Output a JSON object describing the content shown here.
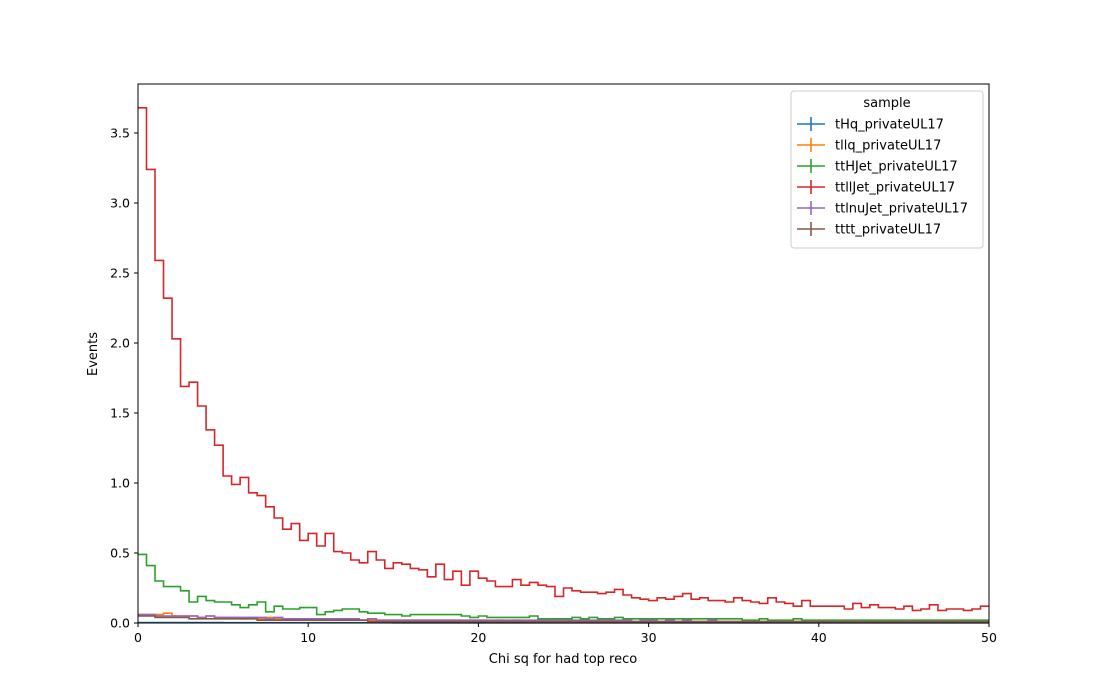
{
  "chart_data": {
    "type": "line",
    "style": "step histogram",
    "xlabel": "Chi sq for had top reco",
    "ylabel": "Events",
    "xlim": [
      0,
      50
    ],
    "ylim": [
      0,
      3.85
    ],
    "x_ticks": [
      0,
      10,
      20,
      30,
      40,
      50
    ],
    "y_ticks": [
      0.0,
      0.5,
      1.0,
      1.5,
      2.0,
      2.5,
      3.0,
      3.5
    ],
    "x_tick_labels": [
      "0",
      "10",
      "20",
      "30",
      "40",
      "50"
    ],
    "y_tick_labels": [
      "0.0",
      "0.5",
      "1.0",
      "1.5",
      "2.0",
      "2.5",
      "3.0",
      "3.5"
    ],
    "grid": false,
    "bin_edges_range": [
      0,
      50
    ],
    "n_bins": 100,
    "legend": {
      "title": "sample",
      "placement": "upper right"
    },
    "series": [
      {
        "name": "tHq_privateUL17",
        "color": "#1f77b4",
        "values": [
          0.003,
          0.003,
          0.003,
          0.003,
          0.003,
          0.003,
          0.003,
          0.003,
          0.003,
          0.003,
          0.002,
          0.002,
          0.002,
          0.002,
          0.002,
          0.002,
          0.002,
          0.002,
          0.002,
          0.002,
          0.002,
          0.002,
          0.002,
          0.002,
          0.002,
          0.002,
          0.002,
          0.002,
          0.002,
          0.002,
          0.001,
          0.001,
          0.001,
          0.001,
          0.001,
          0.001,
          0.001,
          0.001,
          0.001,
          0.001,
          0.001,
          0.001,
          0.001,
          0.001,
          0.001,
          0.001,
          0.001,
          0.001,
          0.001,
          0.001,
          0.001,
          0.001,
          0.001,
          0.001,
          0.001,
          0.001,
          0.001,
          0.001,
          0.001,
          0.001,
          0.001,
          0.001,
          0.001,
          0.001,
          0.001,
          0.001,
          0.001,
          0.001,
          0.001,
          0.001,
          0.001,
          0.001,
          0.001,
          0.001,
          0.001,
          0.001,
          0.001,
          0.001,
          0.001,
          0.001,
          0.001,
          0.001,
          0.001,
          0.001,
          0.001,
          0.001,
          0.001,
          0.001,
          0.001,
          0.001,
          0.001,
          0.001,
          0.001,
          0.001,
          0.001,
          0.001,
          0.001,
          0.001,
          0.001,
          0.001
        ]
      },
      {
        "name": "tllq_privateUL17",
        "color": "#ff7f0e",
        "values": [
          0.06,
          0.06,
          0.06,
          0.07,
          0.05,
          0.05,
          0.05,
          0.04,
          0.05,
          0.04,
          0.04,
          0.04,
          0.03,
          0.04,
          0.03,
          0.04,
          0.03,
          0.03,
          0.03,
          0.03,
          0.03,
          0.02,
          0.03,
          0.02,
          0.02,
          0.03,
          0.02,
          0.02,
          0.02,
          0.02,
          0.02,
          0.02,
          0.02,
          0.02,
          0.02,
          0.02,
          0.02,
          0.02,
          0.01,
          0.02,
          0.02,
          0.01,
          0.02,
          0.01,
          0.02,
          0.01,
          0.01,
          0.02,
          0.01,
          0.01,
          0.01,
          0.01,
          0.01,
          0.01,
          0.01,
          0.01,
          0.01,
          0.01,
          0.01,
          0.01,
          0.01,
          0.01,
          0.01,
          0.01,
          0.01,
          0.01,
          0.01,
          0.01,
          0.01,
          0.01,
          0.01,
          0.01,
          0.01,
          0.01,
          0.01,
          0.01,
          0.01,
          0.01,
          0.01,
          0.01,
          0.01,
          0.01,
          0.01,
          0.01,
          0.01,
          0.01,
          0.01,
          0.01,
          0.01,
          0.01,
          0.01,
          0.01,
          0.01,
          0.01,
          0.01,
          0.01,
          0.01,
          0.01,
          0.01,
          0.01
        ]
      },
      {
        "name": "ttHJet_privateUL17",
        "color": "#2ca02c",
        "values": [
          0.49,
          0.41,
          0.3,
          0.26,
          0.26,
          0.23,
          0.15,
          0.19,
          0.16,
          0.15,
          0.15,
          0.13,
          0.11,
          0.13,
          0.15,
          0.08,
          0.12,
          0.1,
          0.1,
          0.11,
          0.11,
          0.06,
          0.08,
          0.09,
          0.1,
          0.1,
          0.08,
          0.07,
          0.07,
          0.06,
          0.06,
          0.05,
          0.06,
          0.06,
          0.06,
          0.06,
          0.06,
          0.06,
          0.05,
          0.04,
          0.05,
          0.04,
          0.04,
          0.04,
          0.04,
          0.04,
          0.05,
          0.03,
          0.03,
          0.03,
          0.03,
          0.04,
          0.03,
          0.04,
          0.03,
          0.03,
          0.04,
          0.03,
          0.03,
          0.03,
          0.03,
          0.03,
          0.03,
          0.03,
          0.03,
          0.03,
          0.03,
          0.03,
          0.03,
          0.03,
          0.03,
          0.02,
          0.02,
          0.03,
          0.02,
          0.02,
          0.02,
          0.03,
          0.02,
          0.02,
          0.02,
          0.02,
          0.02,
          0.02,
          0.02,
          0.02,
          0.02,
          0.02,
          0.02,
          0.02,
          0.02,
          0.02,
          0.02,
          0.02,
          0.02,
          0.02,
          0.02,
          0.02,
          0.02,
          0.02
        ]
      },
      {
        "name": "ttllJet_privateUL17",
        "color": "#d62728",
        "values": [
          3.68,
          3.24,
          2.59,
          2.32,
          2.03,
          1.69,
          1.72,
          1.55,
          1.38,
          1.27,
          1.05,
          0.99,
          1.04,
          0.93,
          0.91,
          0.83,
          0.75,
          0.67,
          0.71,
          0.59,
          0.64,
          0.55,
          0.64,
          0.51,
          0.5,
          0.45,
          0.43,
          0.51,
          0.45,
          0.39,
          0.43,
          0.42,
          0.39,
          0.38,
          0.33,
          0.42,
          0.31,
          0.37,
          0.27,
          0.37,
          0.32,
          0.3,
          0.26,
          0.26,
          0.31,
          0.27,
          0.29,
          0.27,
          0.26,
          0.19,
          0.25,
          0.23,
          0.22,
          0.22,
          0.21,
          0.22,
          0.24,
          0.2,
          0.18,
          0.17,
          0.16,
          0.18,
          0.17,
          0.19,
          0.21,
          0.17,
          0.18,
          0.16,
          0.16,
          0.15,
          0.18,
          0.16,
          0.15,
          0.14,
          0.18,
          0.15,
          0.14,
          0.12,
          0.16,
          0.12,
          0.12,
          0.12,
          0.12,
          0.1,
          0.14,
          0.11,
          0.13,
          0.11,
          0.11,
          0.1,
          0.12,
          0.09,
          0.1,
          0.13,
          0.09,
          0.1,
          0.1,
          0.09,
          0.1,
          0.12
        ]
      },
      {
        "name": "ttlnuJet_privateUL17",
        "color": "#9467bd",
        "values": [
          0.06,
          0.06,
          0.05,
          0.05,
          0.05,
          0.05,
          0.05,
          0.04,
          0.05,
          0.04,
          0.04,
          0.04,
          0.04,
          0.04,
          0.04,
          0.03,
          0.04,
          0.03,
          0.03,
          0.03,
          0.03,
          0.03,
          0.03,
          0.03,
          0.03,
          0.03,
          0.02,
          0.03,
          0.02,
          0.02,
          0.02,
          0.02,
          0.02,
          0.02,
          0.02,
          0.02,
          0.02,
          0.02,
          0.02,
          0.02,
          0.02,
          0.02,
          0.02,
          0.02,
          0.02,
          0.02,
          0.02,
          0.02,
          0.02,
          0.02,
          0.02,
          0.02,
          0.02,
          0.02,
          0.02,
          0.02,
          0.02,
          0.02,
          0.01,
          0.02,
          0.02,
          0.01,
          0.02,
          0.01,
          0.02,
          0.01,
          0.01,
          0.02,
          0.01,
          0.01,
          0.01,
          0.01,
          0.01,
          0.01,
          0.01,
          0.01,
          0.01,
          0.01,
          0.01,
          0.01,
          0.01,
          0.01,
          0.01,
          0.01,
          0.01,
          0.01,
          0.01,
          0.01,
          0.01,
          0.01,
          0.01,
          0.01,
          0.01,
          0.01,
          0.01,
          0.01,
          0.01,
          0.01,
          0.01,
          0.01
        ]
      },
      {
        "name": "tttt_privateUL17",
        "color": "#8c564b",
        "values": [
          0.05,
          0.05,
          0.04,
          0.04,
          0.04,
          0.04,
          0.03,
          0.03,
          0.03,
          0.03,
          0.03,
          0.03,
          0.03,
          0.03,
          0.02,
          0.02,
          0.02,
          0.02,
          0.02,
          0.02,
          0.02,
          0.02,
          0.02,
          0.02,
          0.02,
          0.02,
          0.02,
          0.01,
          0.01,
          0.01,
          0.01,
          0.01,
          0.01,
          0.01,
          0.01,
          0.01,
          0.01,
          0.01,
          0.01,
          0.01,
          0.01,
          0.01,
          0.01,
          0.01,
          0.01,
          0.01,
          0.01,
          0.01,
          0.01,
          0.01,
          0.01,
          0.01,
          0.01,
          0.01,
          0.01,
          0.01,
          0.01,
          0.01,
          0.01,
          0.01,
          0.01,
          0.01,
          0.01,
          0.01,
          0.01,
          0.01,
          0.01,
          0.01,
          0.01,
          0.01,
          0.01,
          0.01,
          0.01,
          0.01,
          0.01,
          0.01,
          0.01,
          0.01,
          0.01,
          0.01,
          0.01,
          0.01,
          0.01,
          0.01,
          0.01,
          0.01,
          0.01,
          0.01,
          0.01,
          0.01,
          0.01,
          0.01,
          0.01,
          0.01,
          0.01,
          0.01,
          0.01,
          0.01,
          0.01,
          0.01
        ]
      }
    ]
  }
}
